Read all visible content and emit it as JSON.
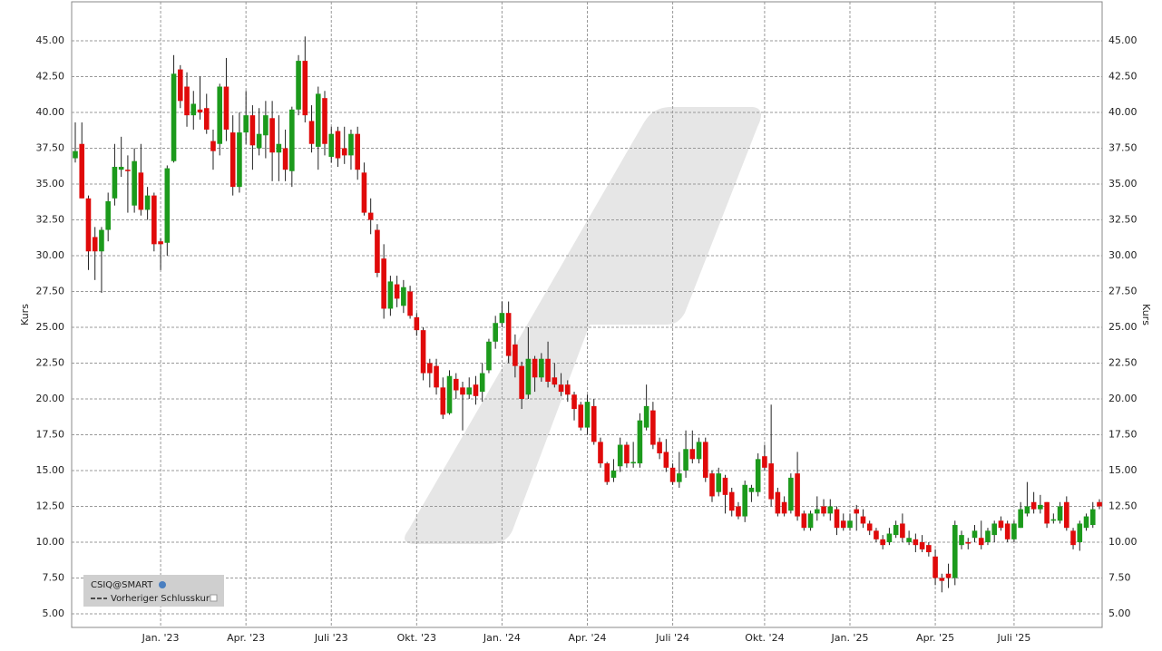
{
  "chart_data": {
    "type": "candlestick",
    "ylabel": "Kurs",
    "ylim": [
      4.05,
      47.72
    ],
    "yticks": [
      {
        "value": 5,
        "label": "5.00"
      },
      {
        "value": 7.5,
        "label": "7.50"
      },
      {
        "value": 10,
        "label": "10.00"
      },
      {
        "value": 12.5,
        "label": "12.50"
      },
      {
        "value": 15,
        "label": "15.00"
      },
      {
        "value": 17.5,
        "label": "17.50"
      },
      {
        "value": 20,
        "label": "20.00"
      },
      {
        "value": 22.5,
        "label": "22.50"
      },
      {
        "value": 25,
        "label": "25.00"
      },
      {
        "value": 27.5,
        "label": "27.50"
      },
      {
        "value": 30,
        "label": "30.00"
      },
      {
        "value": 32.5,
        "label": "32.50"
      },
      {
        "value": 35,
        "label": "35.00"
      },
      {
        "value": 37.5,
        "label": "37.50"
      },
      {
        "value": 40,
        "label": "40.00"
      },
      {
        "value": 42.5,
        "label": "42.50"
      },
      {
        "value": 45,
        "label": "45.00"
      }
    ],
    "grid": true,
    "up_color": "#1c9a1c",
    "down_color": "#e00a0a",
    "categories": [
      null,
      null,
      null,
      null,
      null,
      null,
      null,
      null,
      null,
      null,
      null,
      null,
      null,
      "Jan. '23",
      null,
      null,
      null,
      null,
      null,
      null,
      null,
      null,
      null,
      null,
      null,
      null,
      "Apr. '23",
      null,
      null,
      null,
      null,
      null,
      null,
      null,
      null,
      null,
      null,
      null,
      null,
      "Juli '23",
      null,
      null,
      null,
      null,
      null,
      null,
      null,
      null,
      null,
      null,
      null,
      null,
      "Okt. '23",
      null,
      null,
      null,
      null,
      null,
      null,
      null,
      null,
      null,
      null,
      null,
      null,
      "Jan. '24",
      null,
      null,
      null,
      null,
      null,
      null,
      null,
      null,
      null,
      null,
      null,
      null,
      "Apr. '24",
      null,
      null,
      null,
      null,
      null,
      null,
      null,
      null,
      null,
      null,
      null,
      null,
      "Juli '24",
      null,
      null,
      null,
      null,
      null,
      null,
      null,
      null,
      null,
      null,
      null,
      null,
      null,
      "Okt. '24",
      null,
      null,
      null,
      null,
      null,
      null,
      null,
      null,
      null,
      null,
      null,
      null,
      "Jan. '25",
      null,
      null,
      null,
      null,
      null,
      null,
      null,
      null,
      null,
      null,
      null,
      null,
      "Apr. '25",
      null,
      null,
      null,
      null,
      null,
      null,
      null,
      null,
      null,
      null,
      null,
      "Juli '25",
      null,
      null,
      null,
      null,
      null,
      null,
      null,
      null,
      null,
      null,
      null,
      null,
      null
    ],
    "series": [
      {
        "name": "CSIQ@SMART",
        "open": [
          36.8,
          37.8,
          34.0,
          31.3,
          30.3,
          31.8,
          34.0,
          36.0,
          36.0,
          33.5,
          35.8,
          33.2,
          34.2,
          31.0,
          30.9,
          36.6,
          43.0,
          41.8,
          39.8,
          40.2,
          40.3,
          38.0,
          37.8,
          41.8,
          38.6,
          34.8,
          38.6,
          39.8,
          37.5,
          38.4,
          39.6,
          37.2,
          37.5,
          35.9,
          40.2,
          43.6,
          39.4,
          37.6,
          41.0,
          36.9,
          38.7,
          37.5,
          37.0,
          38.5,
          35.8,
          33.0,
          31.8,
          29.8,
          26.3,
          28.0,
          26.5,
          27.5,
          25.7,
          24.8,
          22.5,
          22.3,
          20.8,
          19.0,
          21.4,
          20.8,
          20.3,
          21.0,
          20.5,
          22.0,
          24.0,
          25.3,
          26.0,
          23.8,
          22.3,
          20.3,
          22.8,
          21.5,
          22.8,
          21.5,
          21.0,
          21.0,
          20.3,
          19.6,
          18.0,
          19.5,
          17.0,
          15.5,
          14.5,
          15.3,
          16.8,
          15.5,
          15.5,
          18.0,
          19.2,
          17.0,
          16.3,
          15.2,
          14.2,
          15.0,
          16.5,
          15.8,
          17.0,
          14.8,
          13.5,
          14.5,
          13.5,
          12.5,
          11.8,
          13.5,
          13.5,
          16.0,
          15.5,
          13.5,
          12.8,
          12.2,
          14.8,
          12.0,
          11.0,
          12.0,
          12.5,
          12.0,
          12.3,
          11.5,
          11.0,
          12.3,
          11.8,
          11.3,
          10.8,
          10.2,
          10.0,
          10.5,
          11.3,
          10.0,
          10.2,
          10.0,
          9.8,
          9.0,
          7.5,
          7.8,
          7.5,
          9.8,
          10.0,
          10.3,
          10.3,
          10.0,
          10.5,
          11.5,
          11.3,
          10.2,
          11.0,
          12.0,
          12.8,
          12.3,
          12.8,
          11.5,
          11.5,
          12.8,
          10.8,
          10.0,
          11.0,
          11.2,
          12.8
        ],
        "high": [
          39.3,
          39.3,
          34.2,
          32.0,
          32.0,
          34.4,
          37.8,
          38.3,
          37.0,
          37.5,
          37.8,
          34.8,
          34.4,
          31.2,
          36.3,
          44.0,
          43.3,
          42.8,
          41.5,
          42.5,
          41.3,
          38.8,
          42.0,
          43.8,
          39.8,
          40.0,
          41.5,
          40.5,
          40.3,
          40.8,
          40.8,
          39.8,
          38.8,
          40.4,
          44.0,
          45.3,
          40.5,
          41.8,
          41.5,
          39.0,
          39.0,
          39.0,
          38.8,
          39.0,
          36.5,
          34.0,
          32.2,
          30.8,
          28.6,
          28.6,
          28.3,
          27.9,
          26.0,
          25.0,
          22.8,
          22.8,
          21.5,
          22.0,
          21.8,
          21.2,
          21.5,
          21.6,
          22.5,
          24.2,
          25.8,
          26.8,
          26.8,
          24.5,
          22.6,
          25.0,
          23.0,
          23.2,
          24.0,
          22.5,
          21.8,
          21.3,
          20.5,
          19.8,
          20.3,
          20.0,
          17.3,
          15.6,
          15.8,
          17.3,
          17.0,
          17.0,
          19.0,
          21.0,
          19.8,
          17.3,
          17.2,
          15.5,
          16.3,
          17.8,
          17.8,
          17.3,
          17.3,
          15.0,
          15.2,
          14.7,
          13.8,
          12.8,
          14.3,
          14.0,
          16.2,
          16.8,
          19.6,
          13.8,
          13.2,
          14.8,
          16.3,
          12.2,
          12.2,
          13.2,
          13.0,
          13.0,
          12.5,
          12.0,
          12.0,
          12.6,
          12.3,
          11.5,
          11.0,
          10.5,
          11.0,
          11.5,
          12.0,
          10.8,
          10.6,
          10.5,
          10.0,
          9.5,
          7.8,
          8.5,
          11.5,
          10.8,
          10.3,
          11.2,
          11.5,
          11.0,
          11.5,
          11.8,
          11.5,
          11.5,
          12.8,
          14.2,
          13.5,
          13.3,
          12.8,
          12.0,
          12.8,
          13.2,
          11.0,
          11.5,
          12.0,
          12.8,
          13.0
        ],
        "low": [
          36.5,
          34.0,
          29.0,
          28.3,
          27.4,
          31.0,
          33.5,
          35.5,
          33.0,
          33.0,
          32.8,
          32.5,
          30.3,
          29.0,
          30.0,
          36.5,
          40.3,
          39.0,
          38.8,
          39.5,
          38.5,
          36.0,
          37.0,
          38.0,
          34.2,
          34.4,
          37.8,
          36.0,
          37.0,
          36.8,
          35.2,
          35.2,
          35.2,
          34.8,
          39.8,
          39.3,
          37.2,
          36.0,
          37.0,
          36.5,
          36.2,
          36.4,
          36.0,
          35.3,
          32.8,
          31.5,
          28.5,
          25.6,
          25.8,
          26.4,
          26.0,
          25.6,
          24.4,
          21.3,
          20.8,
          20.3,
          18.6,
          18.9,
          20.0,
          17.8,
          20.0,
          19.6,
          19.8,
          21.8,
          23.5,
          25.0,
          22.5,
          21.5,
          19.3,
          20.0,
          20.5,
          21.2,
          20.8,
          20.8,
          20.2,
          19.8,
          18.5,
          17.8,
          17.5,
          16.8,
          15.2,
          14.0,
          14.2,
          14.9,
          15.2,
          15.2,
          15.2,
          17.8,
          16.5,
          15.8,
          14.9,
          14.0,
          13.8,
          14.5,
          15.5,
          15.5,
          14.2,
          12.8,
          13.2,
          12.0,
          11.8,
          11.6,
          11.4,
          12.8,
          13.2,
          15.0,
          12.5,
          11.8,
          11.8,
          12.0,
          11.5,
          10.8,
          10.8,
          11.5,
          11.8,
          11.5,
          10.5,
          10.8,
          10.8,
          10.8,
          11.0,
          10.5,
          10.0,
          9.5,
          9.8,
          10.3,
          10.0,
          9.8,
          9.3,
          9.3,
          9.0,
          7.0,
          6.5,
          6.8,
          7.0,
          9.5,
          9.5,
          10.0,
          9.5,
          9.8,
          10.0,
          10.8,
          10.0,
          10.0,
          11.0,
          11.8,
          12.0,
          12.0,
          11.0,
          11.3,
          11.3,
          10.8,
          9.5,
          9.4,
          10.8,
          11.0,
          12.3
        ],
        "close": [
          37.3,
          34.0,
          30.3,
          30.3,
          31.8,
          33.8,
          36.2,
          36.2,
          35.9,
          36.6,
          33.2,
          34.2,
          30.8,
          30.8,
          36.1,
          42.7,
          40.8,
          39.8,
          40.6,
          40.0,
          38.8,
          37.3,
          41.8,
          38.8,
          34.8,
          38.6,
          39.8,
          37.7,
          38.5,
          39.8,
          37.2,
          37.8,
          36.0,
          40.2,
          43.6,
          39.8,
          37.8,
          41.3,
          37.8,
          38.5,
          36.8,
          37.0,
          38.5,
          36.0,
          33.0,
          32.5,
          28.8,
          26.3,
          28.2,
          27.0,
          27.8,
          25.8,
          24.8,
          21.8,
          21.8,
          20.8,
          18.9,
          21.6,
          20.6,
          20.3,
          20.8,
          20.2,
          21.8,
          24.0,
          25.3,
          26.0,
          23.0,
          22.3,
          20.0,
          22.8,
          21.5,
          22.8,
          21.2,
          21.0,
          20.5,
          20.3,
          19.3,
          18.0,
          19.8,
          17.0,
          15.5,
          14.2,
          15.0,
          16.8,
          15.5,
          15.6,
          18.5,
          19.5,
          16.8,
          16.2,
          15.2,
          14.2,
          14.8,
          16.5,
          15.8,
          17.0,
          14.5,
          13.2,
          14.8,
          13.3,
          12.2,
          11.8,
          14.0,
          13.8,
          15.8,
          15.2,
          13.0,
          12.0,
          12.0,
          14.5,
          11.8,
          11.0,
          12.0,
          12.3,
          12.0,
          12.5,
          11.0,
          11.0,
          11.5,
          12.0,
          11.3,
          10.8,
          10.2,
          9.8,
          10.6,
          11.2,
          10.3,
          10.3,
          9.8,
          9.5,
          9.3,
          7.5,
          7.3,
          7.5,
          11.2,
          10.5,
          9.9,
          10.8,
          9.8,
          10.8,
          11.3,
          11.0,
          10.2,
          11.3,
          12.3,
          12.5,
          12.3,
          12.6,
          11.3,
          11.6,
          12.5,
          11.0,
          9.8,
          11.3,
          11.8,
          12.3,
          12.5
        ]
      },
      {
        "name": "Vorheriger Schlusskurs",
        "style": "dashed"
      }
    ]
  }
}
